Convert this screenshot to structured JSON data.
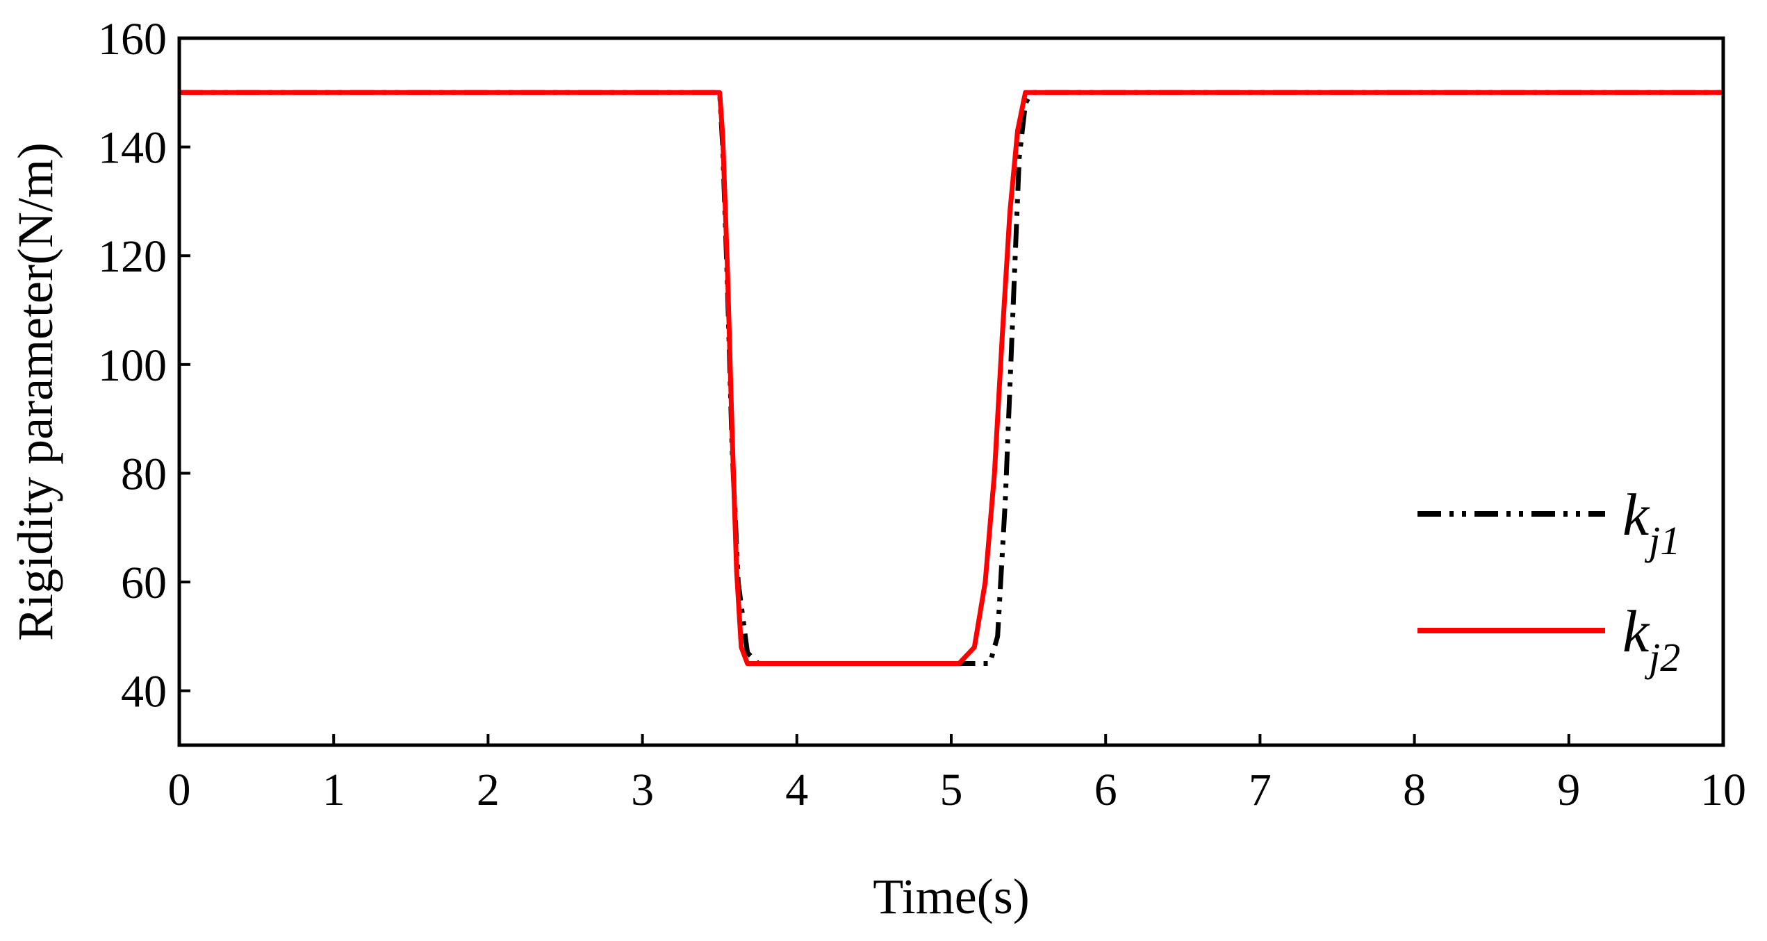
{
  "chart_data": {
    "type": "line",
    "title": "",
    "xlabel": "Time(s)",
    "ylabel": "Rigidity parameter(N/m)",
    "xlim": [
      0,
      10
    ],
    "ylim": [
      30,
      160
    ],
    "xticks": [
      0,
      1,
      2,
      3,
      4,
      5,
      6,
      7,
      8,
      9,
      10
    ],
    "yticks": [
      40,
      60,
      80,
      100,
      120,
      140,
      160
    ],
    "grid": false,
    "legend_position": "bottom-right",
    "series": [
      {
        "name": "k_j1",
        "legend_main": "k",
        "legend_sub": "j1",
        "color": "#000000",
        "style": "dash-dot-dot",
        "x": [
          0,
          3.5,
          3.52,
          3.55,
          3.58,
          3.62,
          3.68,
          3.75,
          5.25,
          5.3,
          5.35,
          5.4,
          5.44,
          5.48,
          5.52,
          10
        ],
        "y": [
          150,
          150,
          140,
          115,
          85,
          60,
          47,
          45,
          45,
          50,
          75,
          110,
          138,
          148,
          150,
          150
        ]
      },
      {
        "name": "k_j2",
        "legend_main": "k",
        "legend_sub": "j2",
        "color": "#ff0000",
        "style": "solid",
        "x": [
          0,
          3.5,
          3.52,
          3.55,
          3.58,
          3.61,
          3.64,
          3.68,
          5.05,
          5.15,
          5.22,
          5.28,
          5.33,
          5.38,
          5.43,
          5.48,
          10
        ],
        "y": [
          150,
          150,
          142,
          118,
          88,
          62,
          48,
          45,
          45,
          48,
          60,
          80,
          105,
          128,
          143,
          150,
          150
        ]
      }
    ]
  }
}
